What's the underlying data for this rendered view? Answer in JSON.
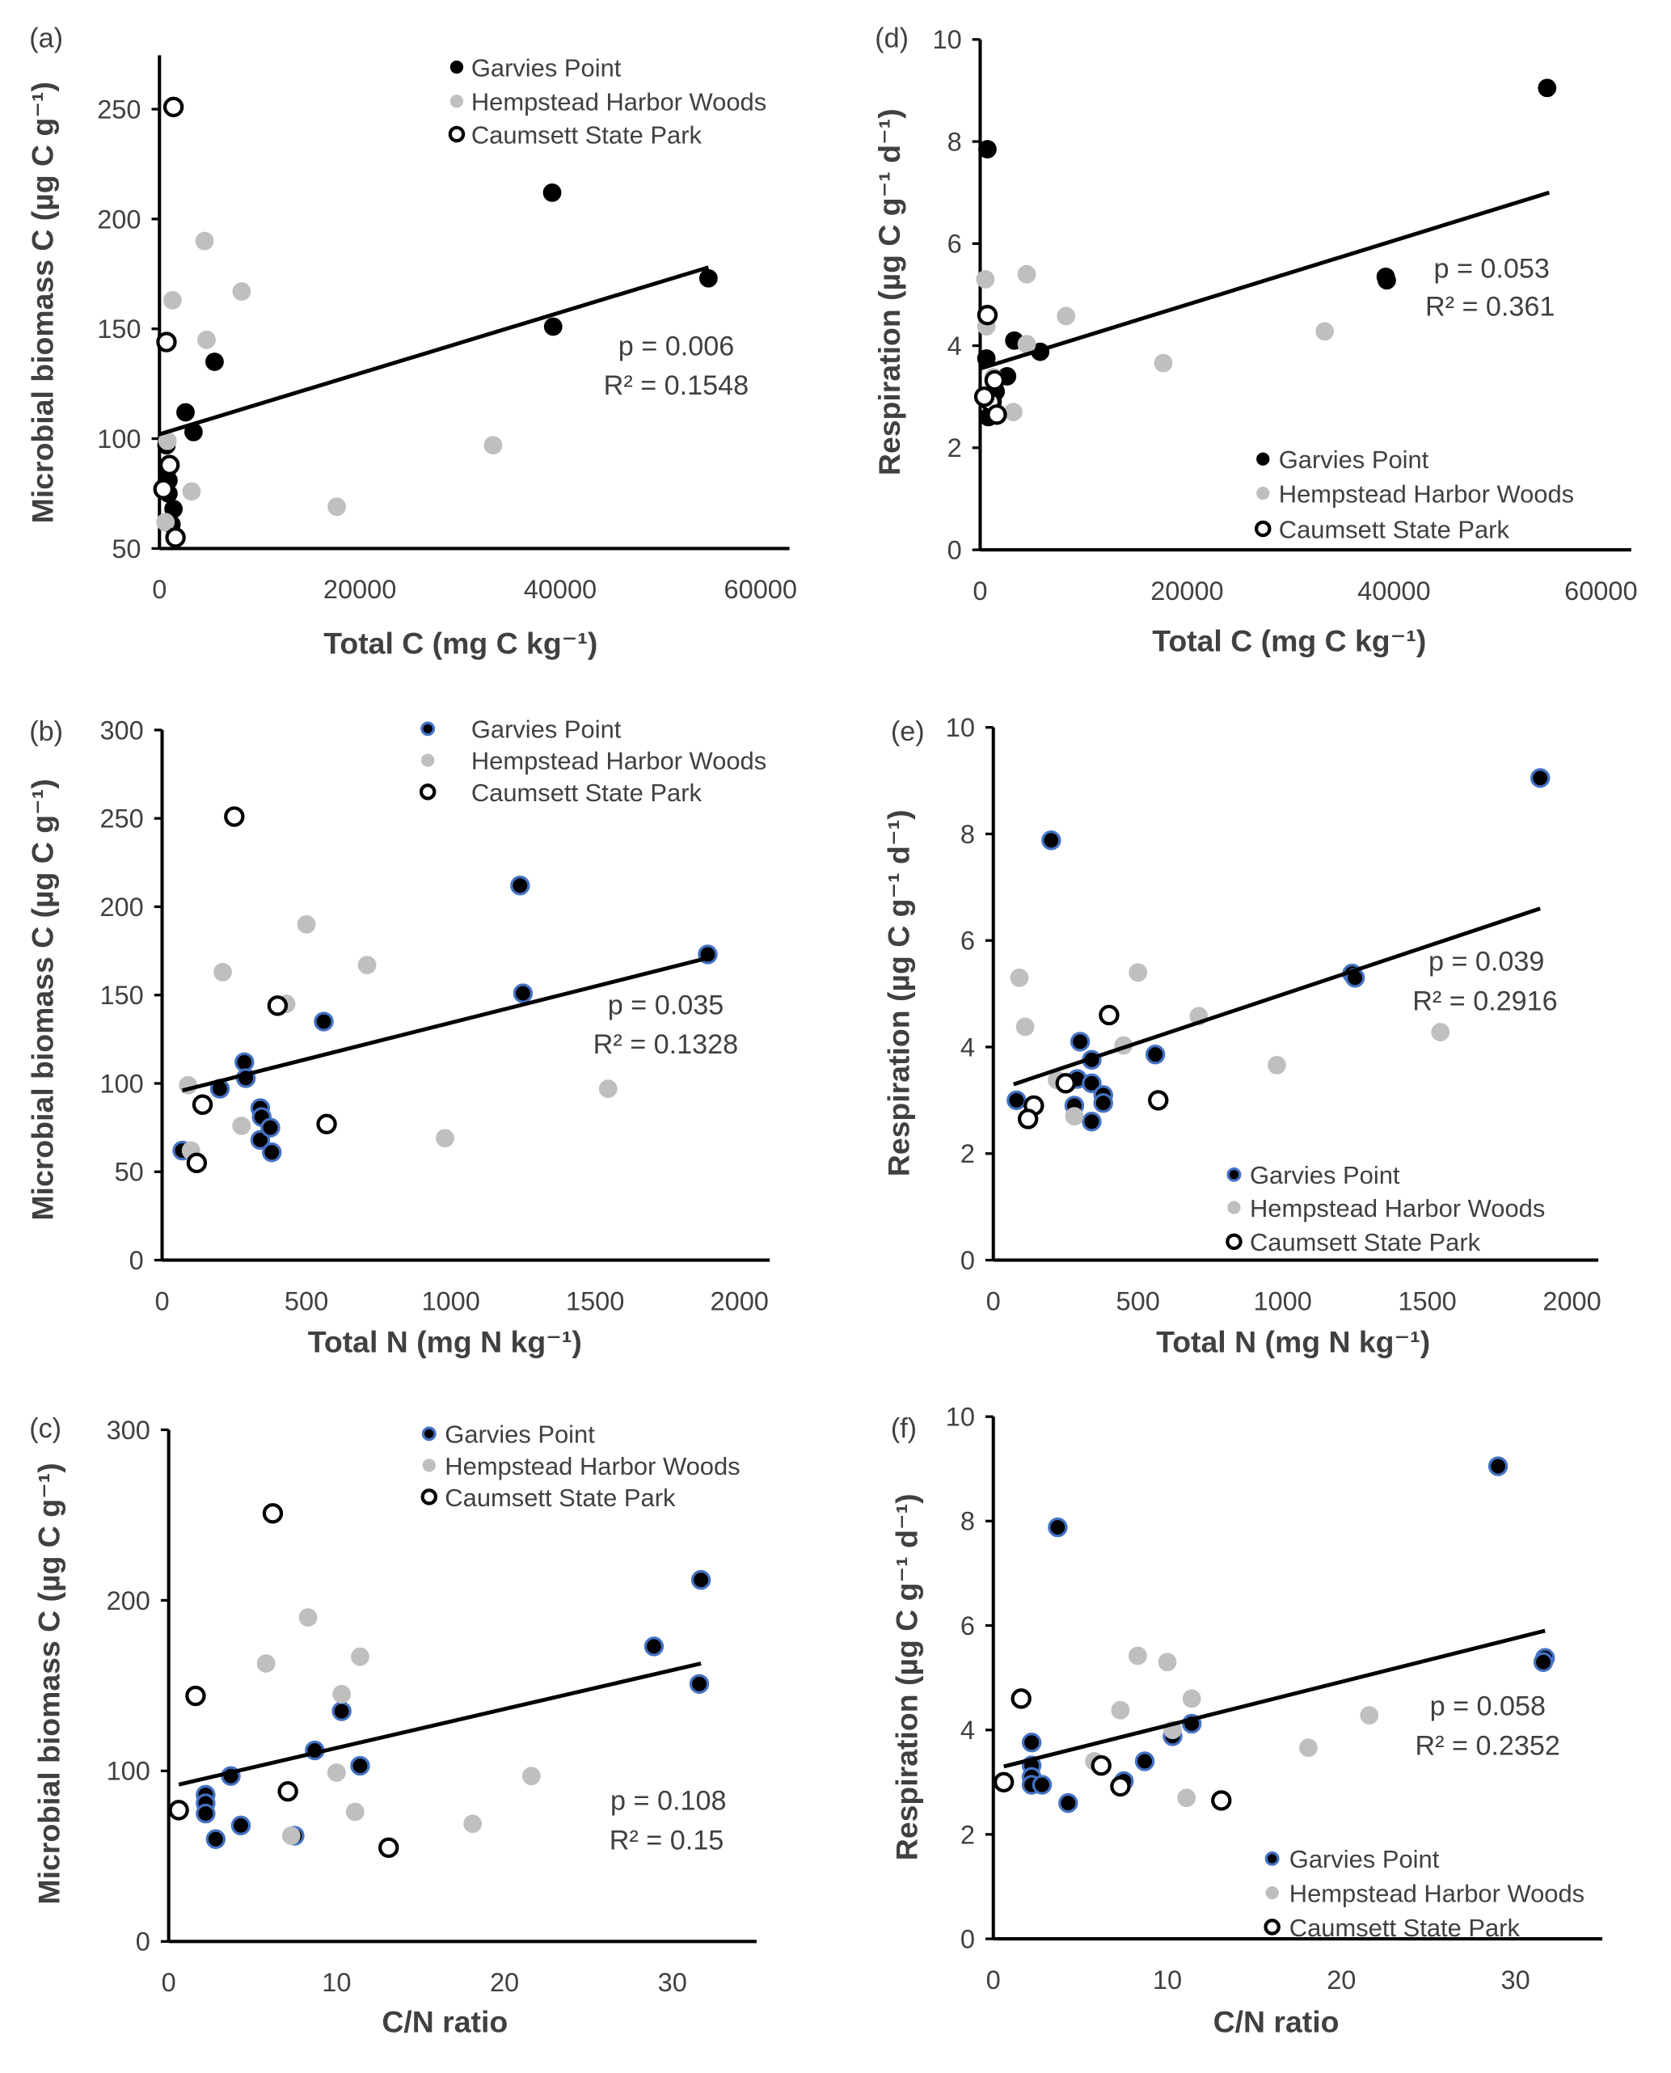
{
  "colors": {
    "garvies_fill": "#000000",
    "garvies_outline_bcef": "#4472c4",
    "hempstead": "#bfbfbf",
    "caumsett_fill": "#ffffff",
    "caumsett_stroke": "#000000",
    "trendline": "#000000"
  },
  "chart_data": [
    {
      "panel": "(a)",
      "type": "scatter",
      "xlabel": "Total C (mg C kg⁻¹)",
      "ylabel": "Microbial biomass C (µg C g⁻¹)",
      "xlim": [
        0,
        60000
      ],
      "ylim": [
        50,
        270
      ],
      "xticks": [
        "0",
        "20000",
        "40000",
        "60000"
      ],
      "yticks": [
        "50",
        "100",
        "150",
        "200",
        "250"
      ],
      "legend": [
        "Garvies Point",
        "Hempstead Harbor Woods",
        "Caumsett State Park"
      ],
      "stats": {
        "p": "p = 0.006",
        "r2": "R² = 0.1548"
      },
      "trendline": [
        [
          0,
          102
        ],
        [
          54800,
          178
        ]
      ],
      "series": [
        {
          "name": "Garvies Point",
          "points": [
            [
              39200,
              212
            ],
            [
              54800,
              173
            ],
            [
              39300,
              151
            ],
            [
              5500,
              135
            ],
            [
              2600,
              112
            ],
            [
              3400,
              103
            ],
            [
              700,
              97
            ],
            [
              800,
              86
            ],
            [
              900,
              81
            ],
            [
              900,
              75
            ],
            [
              1400,
              68
            ],
            [
              700,
              62
            ],
            [
              1200,
              61
            ]
          ]
        },
        {
          "name": "Hempstead Harbor Woods",
          "points": [
            [
              1300,
              163
            ],
            [
              4500,
              190
            ],
            [
              4700,
              145
            ],
            [
              8200,
              167
            ],
            [
              17700,
              69
            ],
            [
              33300,
              97
            ],
            [
              3200,
              76
            ],
            [
              800,
              99
            ],
            [
              600,
              62
            ]
          ]
        },
        {
          "name": "Caumsett State Park",
          "points": [
            [
              1400,
              251
            ],
            [
              700,
              144
            ],
            [
              400,
              77
            ],
            [
              1000,
              88
            ],
            [
              1600,
              55
            ]
          ]
        }
      ]
    },
    {
      "panel": "(b)",
      "type": "scatter",
      "xlabel": "Total N (mg N kg⁻¹)",
      "ylabel": "Microbial biomass C (µg C g⁻¹)",
      "xlim": [
        0,
        2000
      ],
      "ylim": [
        0,
        300
      ],
      "xticks": [
        "0",
        "500",
        "1000",
        "1500",
        "2000"
      ],
      "yticks": [
        "0",
        "50",
        "100",
        "150",
        "200",
        "250",
        "300"
      ],
      "legend": [
        "Garvies Point",
        "Hempstead Harbor Woods",
        "Caumsett State Park"
      ],
      "stats": {
        "p": "p = 0.035",
        "r2": "R² = 0.1328"
      },
      "trendline": [
        [
          70,
          96
        ],
        [
          1890,
          171
        ]
      ],
      "series": [
        {
          "name": "Garvies Point",
          "points": [
            [
              70,
              62
            ],
            [
              200,
              97
            ],
            [
              285,
              112
            ],
            [
              290,
              103
            ],
            [
              340,
              86
            ],
            [
              345,
              81
            ],
            [
              340,
              68
            ],
            [
              375,
              75
            ],
            [
              380,
              61
            ],
            [
              560,
              135
            ],
            [
              1240,
              212
            ],
            [
              1250,
              151
            ],
            [
              1890,
              173
            ]
          ]
        },
        {
          "name": "Hempstead Harbor Woods",
          "points": [
            [
              90,
              99
            ],
            [
              210,
              163
            ],
            [
              275,
              76
            ],
            [
              430,
              145
            ],
            [
              500,
              190
            ],
            [
              710,
              167
            ],
            [
              980,
              69
            ],
            [
              1545,
              97
            ],
            [
              100,
              62
            ]
          ]
        },
        {
          "name": "Caumsett State Park",
          "points": [
            [
              250,
              251
            ],
            [
              400,
              144
            ],
            [
              570,
              77
            ],
            [
              140,
              88
            ],
            [
              120,
              55
            ]
          ]
        }
      ]
    },
    {
      "panel": "(c)",
      "type": "scatter",
      "xlabel": "C/N ratio",
      "ylabel": "Microbial biomass C (µg C g⁻¹)",
      "xlim": [
        0,
        35
      ],
      "ylim": [
        0,
        300
      ],
      "xticks": [
        "0",
        "10",
        "20",
        "30"
      ],
      "yticks": [
        "0",
        "100",
        "200",
        "300"
      ],
      "legend": [
        "Garvies Point",
        "Hempstead Harbor Woods",
        "Caumsett State Park"
      ],
      "stats": {
        "p": "p = 0.108",
        "r2": "R² = 0.15"
      },
      "trendline": [
        [
          0.6,
          92
        ],
        [
          31.7,
          163
        ]
      ],
      "series": [
        {
          "name": "Garvies Point",
          "points": [
            [
              31.7,
              212
            ],
            [
              28.9,
              173
            ],
            [
              31.6,
              151
            ],
            [
              10.3,
              135
            ],
            [
              8.7,
              112
            ],
            [
              11.4,
              103
            ],
            [
              3.7,
              97
            ],
            [
              2.2,
              86
            ],
            [
              2.2,
              81
            ],
            [
              2.2,
              75
            ],
            [
              4.3,
              68
            ],
            [
              7.5,
              62
            ],
            [
              2.8,
              60
            ]
          ]
        },
        {
          "name": "Hempstead Harbor Woods",
          "points": [
            [
              5.8,
              163
            ],
            [
              8.3,
              190
            ],
            [
              10.3,
              145
            ],
            [
              11.4,
              167
            ],
            [
              18.1,
              69
            ],
            [
              21.6,
              97
            ],
            [
              11.1,
              76
            ],
            [
              10,
              99
            ],
            [
              7.3,
              62
            ]
          ]
        },
        {
          "name": "Caumsett State Park",
          "points": [
            [
              6.2,
              251
            ],
            [
              1.6,
              144
            ],
            [
              0.6,
              77
            ],
            [
              7.1,
              88
            ],
            [
              13.1,
              55
            ]
          ]
        }
      ]
    },
    {
      "panel": "(d)",
      "type": "scatter",
      "xlabel": "Total C (mg C kg⁻¹)",
      "ylabel": "Respiration (µg C g⁻¹ d⁻¹)",
      "xlim": [
        0,
        60000
      ],
      "ylim": [
        0,
        10
      ],
      "xticks": [
        "0",
        "20000",
        "40000",
        "60000"
      ],
      "yticks": [
        "0",
        "2",
        "4",
        "6",
        "8",
        "10"
      ],
      "legend": [
        "Garvies Point",
        "Hempstead Harbor Woods",
        "Caumsett State Park"
      ],
      "stats": {
        "p": "p = 0.053",
        "r2": "R² = 0.361"
      },
      "trendline": [
        [
          0,
          3.55
        ],
        [
          55000,
          7.0
        ]
      ],
      "series": [
        {
          "name": "Garvies Point",
          "points": [
            [
              54800,
              9.05
            ],
            [
              700,
              7.85
            ],
            [
              39200,
              5.35
            ],
            [
              39300,
              5.28
            ],
            [
              3300,
              4.1
            ],
            [
              5800,
              3.88
            ],
            [
              600,
              3.75
            ],
            [
              2600,
              3.4
            ],
            [
              1500,
              3.1
            ],
            [
              600,
              3.0
            ],
            [
              1200,
              2.9
            ],
            [
              800,
              2.6
            ]
          ]
        },
        {
          "name": "Hempstead Harbor Woods",
          "points": [
            [
              500,
              5.3
            ],
            [
              4500,
              5.4
            ],
            [
              600,
              4.38
            ],
            [
              8300,
              4.58
            ],
            [
              4500,
              4.03
            ],
            [
              17700,
              3.66
            ],
            [
              33300,
              4.28
            ],
            [
              1300,
              3.38
            ],
            [
              3200,
              2.7
            ]
          ]
        },
        {
          "name": "Caumsett State Park",
          "points": [
            [
              700,
              4.6
            ],
            [
              1400,
              3.32
            ],
            [
              1000,
              2.9
            ],
            [
              1600,
              2.65
            ],
            [
              400,
              3.0
            ]
          ]
        }
      ]
    },
    {
      "panel": "(e)",
      "type": "scatter",
      "xlabel": "Total N (mg N kg⁻¹)",
      "ylabel": "Respiration (µg C g⁻¹ d⁻¹)",
      "xlim": [
        0,
        2000
      ],
      "ylim": [
        0,
        10
      ],
      "xticks": [
        "0",
        "500",
        "1000",
        "1500",
        "2000"
      ],
      "yticks": [
        "0",
        "2",
        "4",
        "6",
        "8",
        "10"
      ],
      "legend": [
        "Garvies Point",
        "Hempstead Harbor Woods",
        "Caumsett State Park"
      ],
      "stats": {
        "p": "p = 0.039",
        "r2": "R² = 0.2916"
      },
      "trendline": [
        [
          70,
          3.3
        ],
        [
          1890,
          6.6
        ]
      ],
      "series": [
        {
          "name": "Garvies Point",
          "points": [
            [
              1890,
              9.05
            ],
            [
              200,
              7.88
            ],
            [
              1240,
              5.38
            ],
            [
              1250,
              5.3
            ],
            [
              300,
              4.1
            ],
            [
              560,
              3.86
            ],
            [
              340,
              3.76
            ],
            [
              290,
              3.4
            ],
            [
              340,
              3.32
            ],
            [
              380,
              3.1
            ],
            [
              380,
              2.95
            ],
            [
              80,
              3.0
            ],
            [
              280,
              2.9
            ],
            [
              340,
              2.6
            ]
          ]
        },
        {
          "name": "Hempstead Harbor Woods",
          "points": [
            [
              90,
              5.3
            ],
            [
              110,
              4.38
            ],
            [
              500,
              5.4
            ],
            [
              710,
              4.58
            ],
            [
              450,
              4.03
            ],
            [
              980,
              3.66
            ],
            [
              1545,
              4.28
            ],
            [
              220,
              3.38
            ],
            [
              280,
              2.7
            ]
          ]
        },
        {
          "name": "Caumsett State Park",
          "points": [
            [
              400,
              4.6
            ],
            [
              250,
              3.32
            ],
            [
              140,
              2.9
            ],
            [
              120,
              2.65
            ],
            [
              570,
              3.0
            ]
          ]
        }
      ]
    },
    {
      "panel": "(f)",
      "type": "scatter",
      "xlabel": "C/N ratio",
      "ylabel": "Respiration (µg C g⁻¹ d⁻¹)",
      "xlim": [
        0,
        35
      ],
      "ylim": [
        0,
        10
      ],
      "xticks": [
        "0",
        "10",
        "20",
        "30"
      ],
      "yticks": [
        "0",
        "2",
        "4",
        "6",
        "8",
        "10"
      ],
      "legend": [
        "Garvies Point",
        "Hempstead Harbor Woods",
        "Caumsett State Park"
      ],
      "stats": {
        "p": "p = 0.058",
        "r2": "R² = 0.2352"
      },
      "trendline": [
        [
          0.6,
          3.3
        ],
        [
          31.7,
          5.9
        ]
      ],
      "series": [
        {
          "name": "Garvies Point",
          "points": [
            [
              29,
              9.05
            ],
            [
              3.7,
              7.88
            ],
            [
              31.7,
              5.38
            ],
            [
              31.6,
              5.3
            ],
            [
              11.4,
              4.12
            ],
            [
              2.2,
              3.76
            ],
            [
              10.3,
              3.88
            ],
            [
              8.7,
              3.4
            ],
            [
              7.5,
              3.02
            ],
            [
              2.2,
              3.32
            ],
            [
              2.2,
              3.1
            ],
            [
              2.2,
              2.95
            ],
            [
              2.8,
              2.95
            ],
            [
              4.3,
              2.6
            ]
          ]
        },
        {
          "name": "Hempstead Harbor Woods",
          "points": [
            [
              8.3,
              5.42
            ],
            [
              10,
              5.3
            ],
            [
              7.3,
              4.38
            ],
            [
              11.4,
              4.6
            ],
            [
              10.3,
              4.0
            ],
            [
              21.6,
              4.28
            ],
            [
              18.1,
              3.66
            ],
            [
              5.8,
              3.4
            ],
            [
              11.1,
              2.7
            ]
          ]
        },
        {
          "name": "Caumsett State Park",
          "points": [
            [
              1.6,
              4.6
            ],
            [
              6.2,
              3.32
            ],
            [
              0.6,
              3.0
            ],
            [
              7.3,
              2.92
            ],
            [
              13.1,
              2.65
            ]
          ]
        }
      ]
    }
  ]
}
